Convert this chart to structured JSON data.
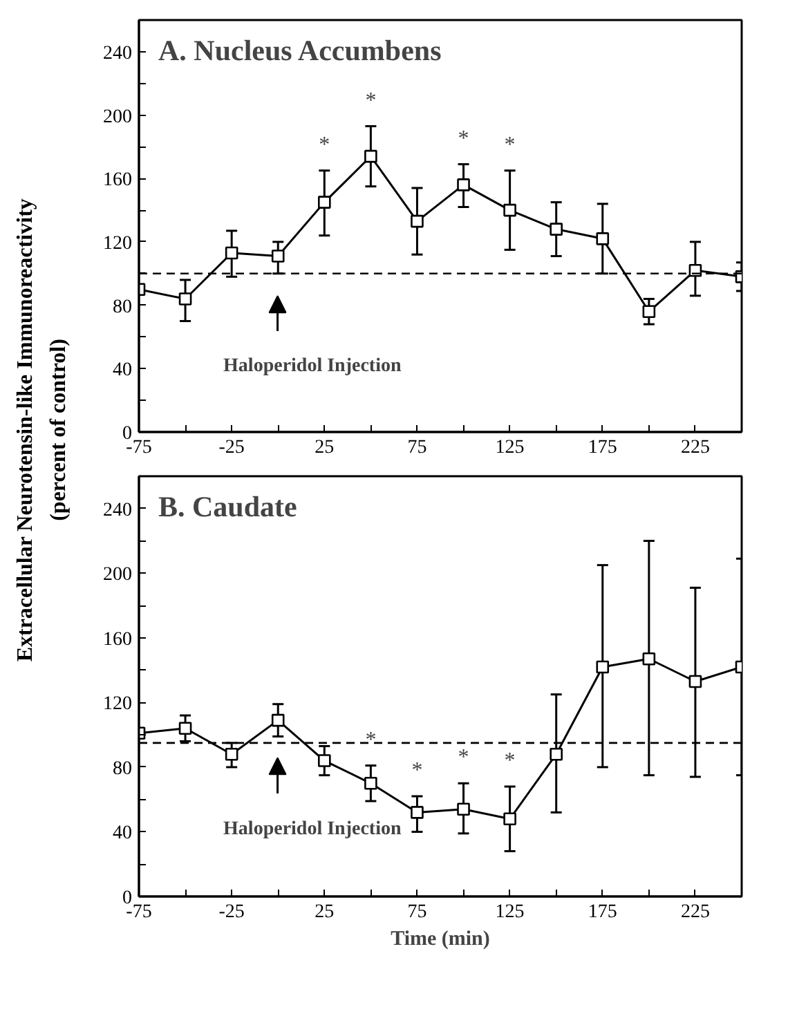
{
  "chart_data": [
    {
      "type": "line",
      "title": "A.  Nucleus  Accumbens",
      "ylabel": "Extracellular Neurotensin-like Immunoreactivity\n(percent of control)",
      "x": [
        -75,
        -50,
        -25,
        0,
        25,
        50,
        75,
        100,
        125,
        150,
        175,
        200,
        225,
        250
      ],
      "series": [
        {
          "color": "#000000",
          "values": [
            90,
            84,
            113,
            111,
            145,
            174,
            133,
            156,
            140,
            128,
            122,
            76,
            102,
            98
          ],
          "errors": [
            null,
            [
              70,
              96
            ],
            [
              98,
              127
            ],
            [
              100,
              120
            ],
            [
              124,
              165
            ],
            [
              155,
              193
            ],
            [
              112,
              154
            ],
            [
              142,
              169
            ],
            [
              115,
              165
            ],
            [
              111,
              145
            ],
            [
              100,
              144
            ],
            [
              68,
              84
            ],
            [
              86,
              120
            ],
            [
              89,
              107
            ]
          ]
        }
      ],
      "xlim": [
        -75,
        250
      ],
      "ylim": [
        0,
        260
      ],
      "xticks": [
        -75,
        {
          "value": -50,
          "label": null
        },
        -25,
        {
          "value": 0,
          "label": null
        },
        25,
        {
          "value": 50,
          "label": null
        },
        75,
        {
          "value": 100,
          "label": null
        },
        125,
        {
          "value": 150,
          "label": null
        },
        175,
        {
          "value": 200,
          "label": null
        },
        225,
        {
          "value": 250,
          "label": null
        }
      ],
      "yticks": [
        0,
        {
          "value": 20,
          "label": null
        },
        40,
        {
          "value": 60,
          "label": null
        },
        80,
        {
          "value": 100,
          "label": null
        },
        120,
        {
          "value": 140,
          "label": null
        },
        160,
        {
          "value": 180,
          "label": null
        },
        200,
        {
          "value": 220,
          "label": null
        },
        240
      ],
      "ref_lines": [
        {
          "axis": "y",
          "value": 100,
          "line_style": "dashed"
        }
      ],
      "annotations": [
        {
          "text": "*",
          "x": 25,
          "y": 145
        },
        {
          "text": "*",
          "x": 50,
          "y": 174
        },
        {
          "text": "*",
          "x": 100,
          "y": 156
        },
        {
          "text": "*",
          "x": 125,
          "y": 140
        },
        "Haloperidol Injection"
      ],
      "marker": "square",
      "line_style": "solid",
      "grid": false
    },
    {
      "type": "line",
      "title": "B.  Caudate",
      "xlabel": "Time (min)",
      "x": [
        -75,
        -50,
        -25,
        0,
        25,
        50,
        75,
        100,
        125,
        150,
        175,
        200,
        225,
        250
      ],
      "series": [
        {
          "color": "#000000",
          "values": [
            101,
            104,
            88,
            109,
            84,
            70,
            52,
            54,
            48,
            88,
            142,
            147,
            133,
            142
          ],
          "errors": [
            null,
            [
              96,
              112
            ],
            [
              80,
              95
            ],
            [
              99,
              119
            ],
            [
              75,
              93
            ],
            [
              59,
              81
            ],
            [
              40,
              62
            ],
            [
              39,
              70
            ],
            [
              28,
              68
            ],
            [
              52,
              125
            ],
            [
              80,
              205
            ],
            [
              75,
              220
            ],
            [
              74,
              191
            ],
            [
              75,
              209
            ]
          ]
        }
      ],
      "xlim": [
        -75,
        250
      ],
      "ylim": [
        0,
        260
      ],
      "xticks": [
        -75,
        {
          "value": -50,
          "label": null
        },
        -25,
        {
          "value": 0,
          "label": null
        },
        25,
        {
          "value": 50,
          "label": null
        },
        75,
        {
          "value": 100,
          "label": null
        },
        125,
        {
          "value": 150,
          "label": null
        },
        175,
        {
          "value": 200,
          "label": null
        },
        225,
        {
          "value": 250,
          "label": null
        }
      ],
      "yticks": [
        0,
        {
          "value": 20,
          "label": null
        },
        40,
        {
          "value": 60,
          "label": null
        },
        80,
        {
          "value": 100,
          "label": null
        },
        120,
        {
          "value": 140,
          "label": null
        },
        160,
        {
          "value": 180,
          "label": null
        },
        200,
        {
          "value": 220,
          "label": null
        },
        240
      ],
      "ref_lines": [
        {
          "axis": "y",
          "value": 95,
          "line_style": "dashed"
        }
      ],
      "annotations": [
        {
          "text": "*",
          "x": 50,
          "y": 70
        },
        {
          "text": "*",
          "x": 75,
          "y": 52
        },
        {
          "text": "*",
          "x": 100,
          "y": 54
        },
        {
          "text": "*",
          "x": 125,
          "y": 48
        },
        "Haloperidol Injection"
      ],
      "marker": "square",
      "line_style": "solid",
      "grid": false
    }
  ]
}
